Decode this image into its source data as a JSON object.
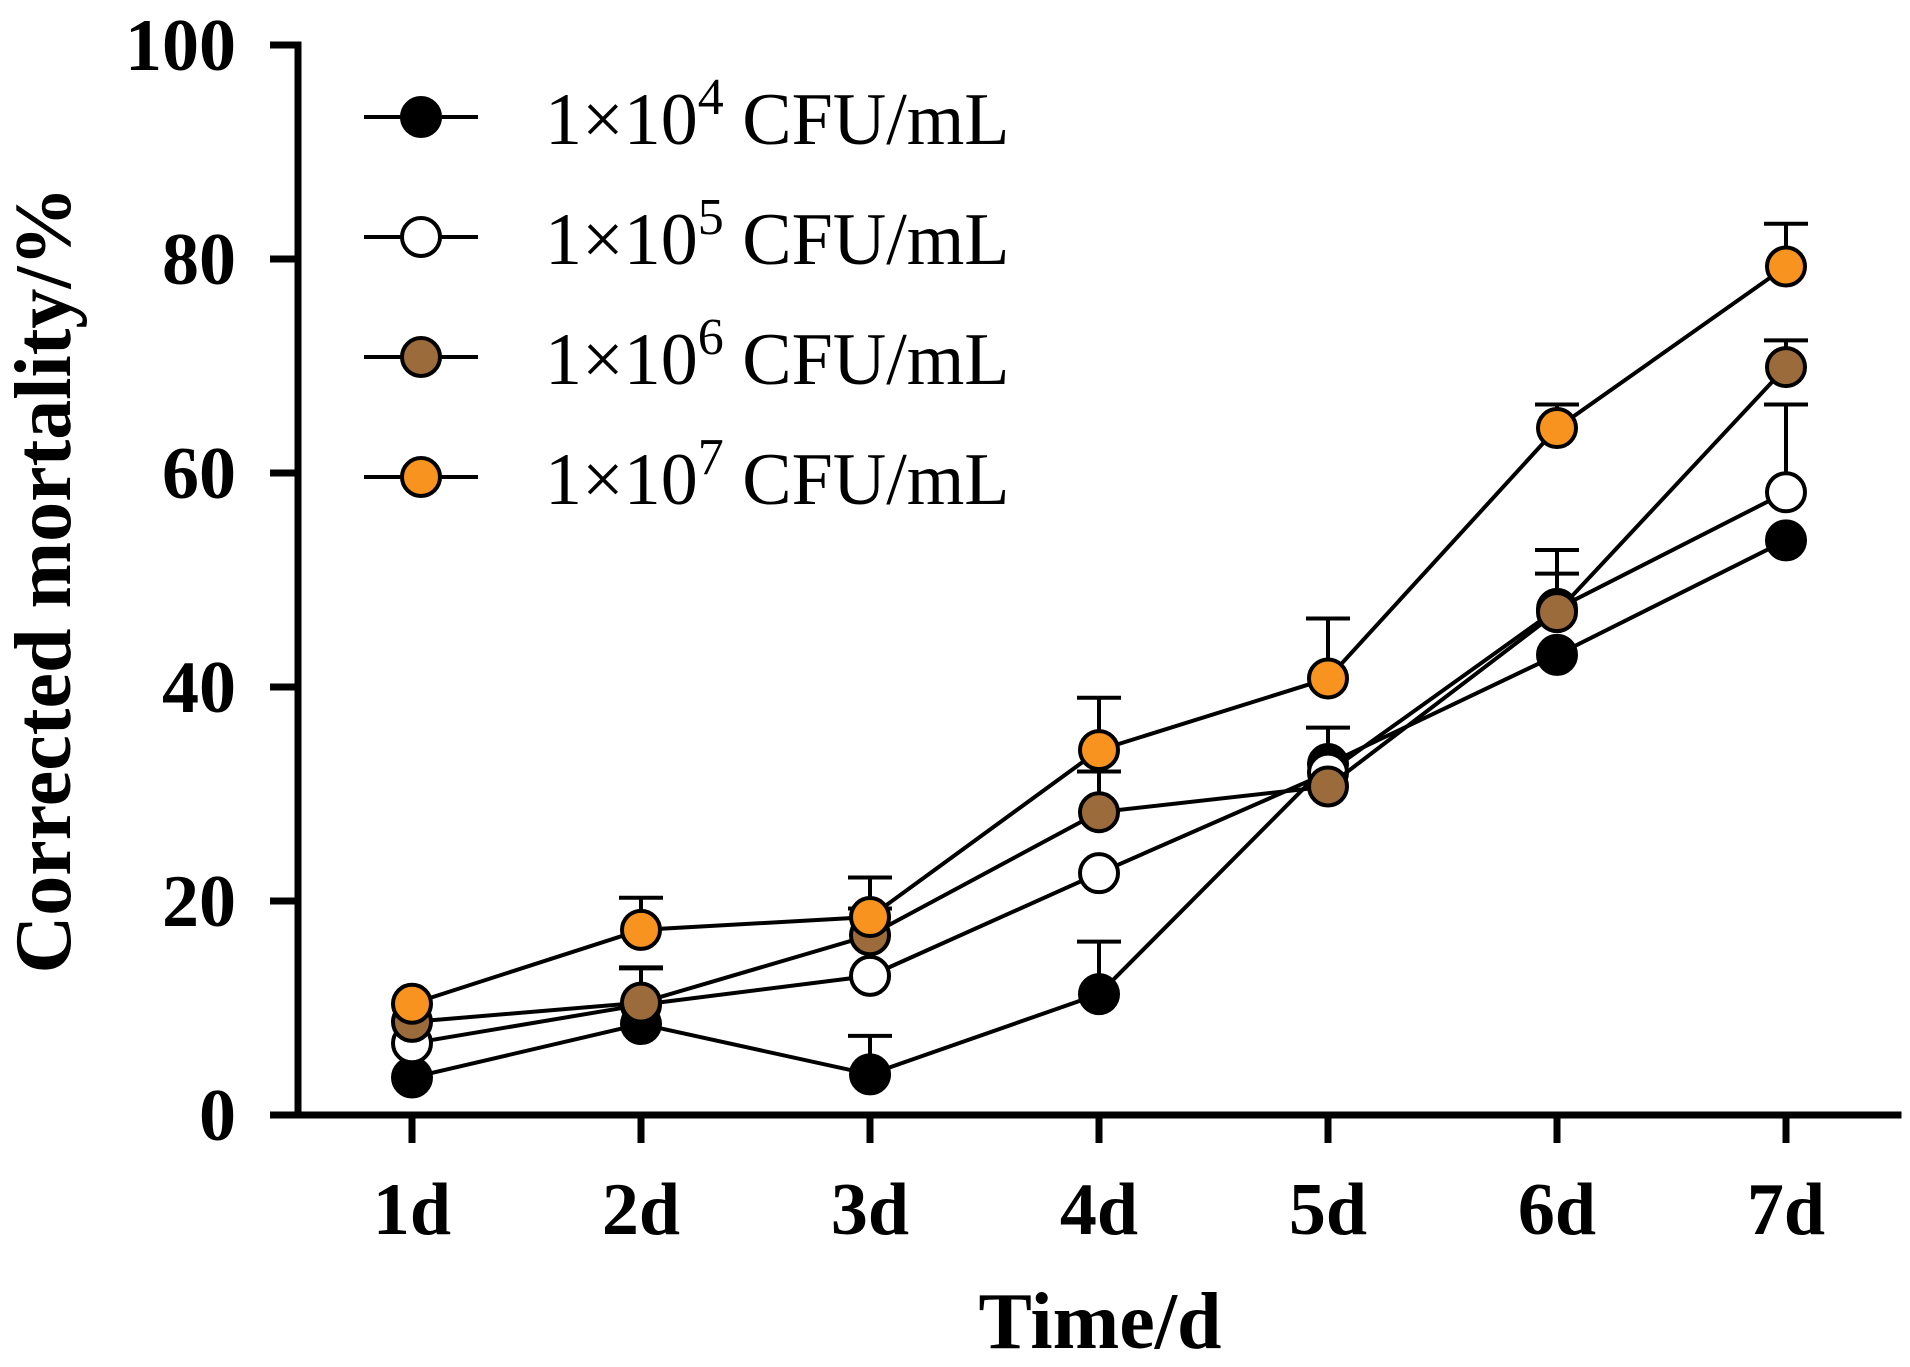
{
  "chart_data": {
    "type": "line",
    "title": "",
    "xlabel": "Time/d",
    "ylabel": "Corrected mortality/%",
    "categories": [
      "1d",
      "2d",
      "3d",
      "4d",
      "5d",
      "6d",
      "7d"
    ],
    "ylim": [
      0,
      100
    ],
    "yticks": [
      "0",
      "20",
      "40",
      "60",
      "80",
      "100"
    ],
    "legend_position": "top-left",
    "series": [
      {
        "name": "1×10⁴ CFU/mL",
        "name_base": "1×10",
        "name_exp": "4",
        "name_unit": " CFU/mL",
        "color": "#000000",
        "values": [
          3.5,
          8.5,
          3.8,
          11.3,
          32.8,
          43.0,
          53.7
        ],
        "errors": [
          0,
          0,
          3.6,
          4.9,
          3.4,
          0,
          0
        ]
      },
      {
        "name": "1×10⁵ CFU/mL",
        "name_base": "1×10",
        "name_exp": "5",
        "name_unit": " CFU/mL",
        "color": "#ffffff",
        "values": [
          6.7,
          10.3,
          13.0,
          22.6,
          32.0,
          47.3,
          58.2
        ],
        "errors": [
          0,
          3.5,
          0,
          0,
          0,
          5.5,
          8.2
        ]
      },
      {
        "name": "1×10⁶ CFU/mL",
        "name_base": "1×10",
        "name_exp": "6",
        "name_unit": " CFU/mL",
        "color": "#9c6b3c",
        "values": [
          8.7,
          10.5,
          16.8,
          28.3,
          30.7,
          47.0,
          69.9
        ],
        "errors": [
          0,
          3.2,
          2.5,
          3.8,
          0,
          3.6,
          2.5
        ]
      },
      {
        "name": "1×10⁷ CFU/mL",
        "name_base": "1×10",
        "name_exp": "7",
        "name_unit": " CFU/mL",
        "color": "#f7931e",
        "values": [
          10.4,
          17.3,
          18.5,
          34.1,
          40.8,
          64.2,
          79.3
        ],
        "errors": [
          0,
          3.0,
          3.7,
          4.9,
          5.6,
          2.2,
          4.0
        ]
      }
    ]
  }
}
